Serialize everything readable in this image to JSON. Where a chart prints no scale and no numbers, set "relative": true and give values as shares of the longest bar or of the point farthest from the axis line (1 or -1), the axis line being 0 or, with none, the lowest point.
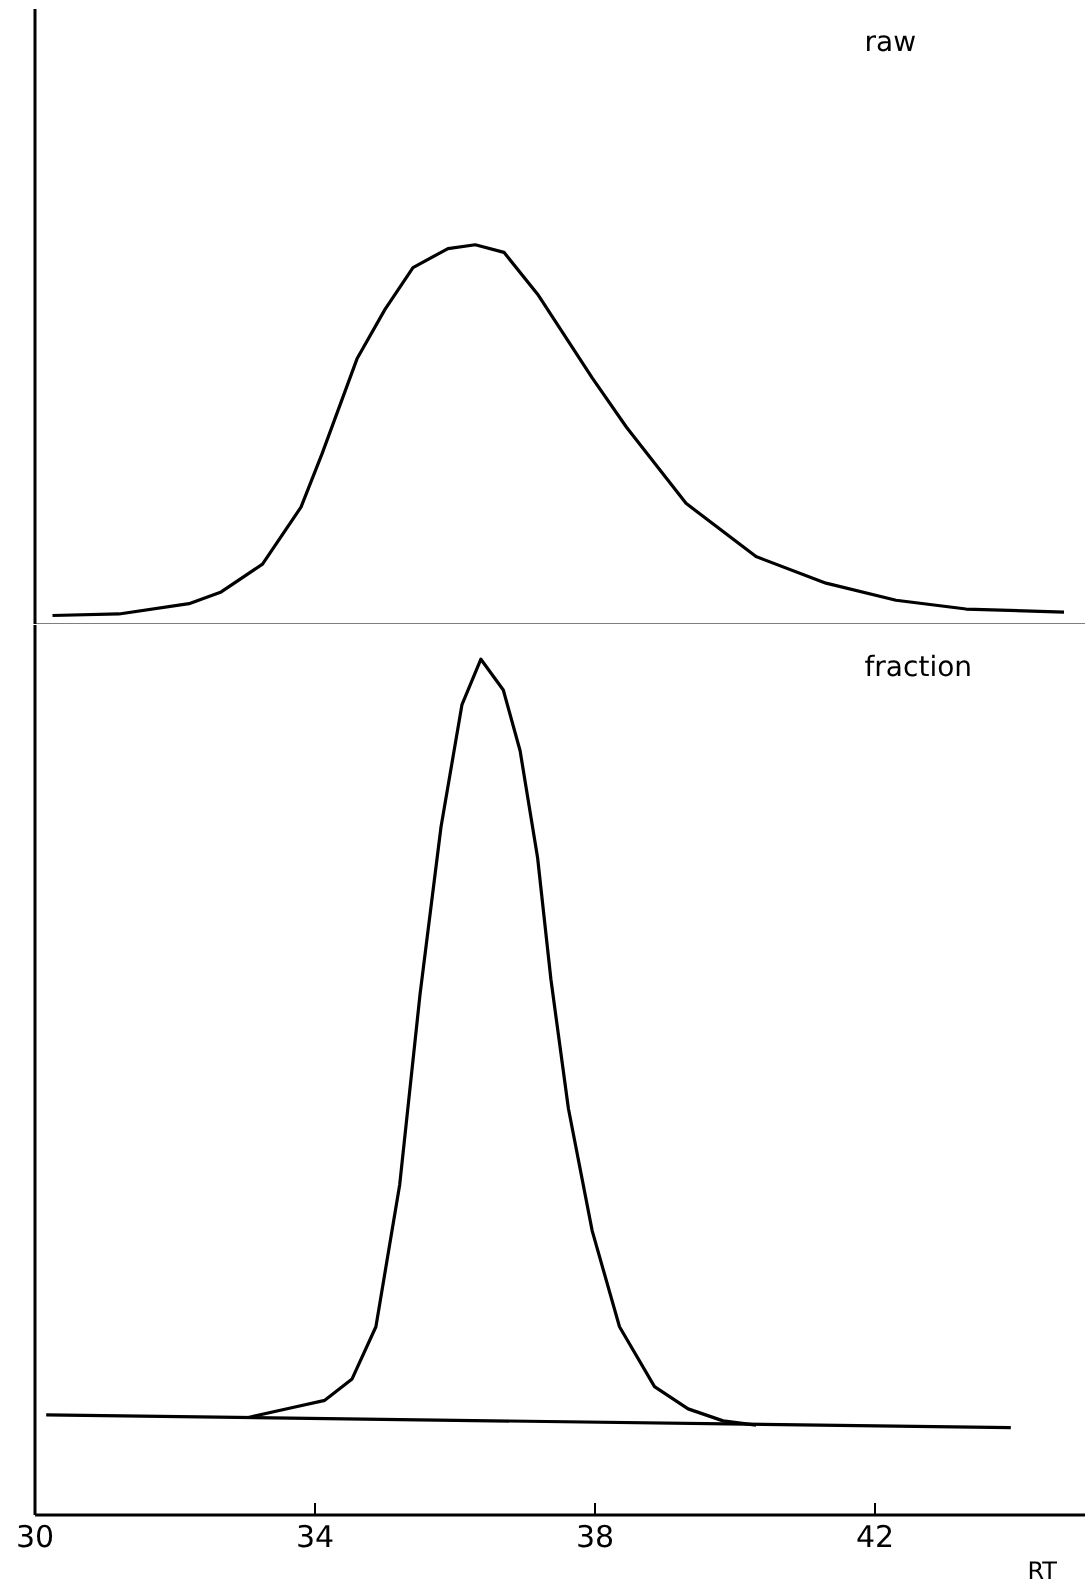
{
  "chart_data": [
    {
      "type": "line",
      "relative": true,
      "xlim": [
        30,
        45
      ],
      "tick_labels": false,
      "annotations": [
        "raw"
      ],
      "series": [
        {
          "color": "#000000",
          "x": [
            30.25,
            31.2,
            32.2,
            32.66,
            33.25,
            33.8,
            34.1,
            34.6,
            35.0,
            35.4,
            35.9,
            36.29,
            36.7,
            37.18,
            37.96,
            38.45,
            39.3,
            40.3,
            41.3,
            42.3,
            43.3,
            44.7
          ],
          "values": [
            0.025,
            0.029,
            0.056,
            0.087,
            0.16,
            0.31,
            0.45,
            0.7,
            0.83,
            0.94,
            0.99,
            1.0,
            0.98,
            0.87,
            0.65,
            0.52,
            0.32,
            0.18,
            0.11,
            0.065,
            0.042,
            0.034
          ]
        }
      ]
    },
    {
      "type": "line",
      "relative": true,
      "xlim": [
        30,
        45
      ],
      "xticks": [
        30,
        34,
        38,
        42
      ],
      "xlabel": "RT",
      "tick_labels": "x",
      "annotations": [
        "fraction"
      ],
      "series": [
        {
          "color": "#000000",
          "x": [
            33.05,
            33.65,
            34.14,
            34.53,
            34.87,
            35.21,
            35.5,
            35.8,
            36.1,
            36.37,
            36.69,
            36.93,
            37.18,
            37.37,
            37.62,
            37.96,
            38.35,
            38.85,
            39.33,
            39.83,
            40.3
          ],
          "values": [
            0.114,
            0.125,
            0.134,
            0.159,
            0.22,
            0.386,
            0.608,
            0.804,
            0.947,
            1.0,
            0.964,
            0.893,
            0.768,
            0.626,
            0.475,
            0.332,
            0.22,
            0.15,
            0.124,
            0.11,
            0.105
          ]
        },
        {
          "color": "#000000",
          "x": [
            30.16,
            43.94
          ],
          "values": [
            0.117,
            0.102
          ]
        }
      ]
    }
  ]
}
